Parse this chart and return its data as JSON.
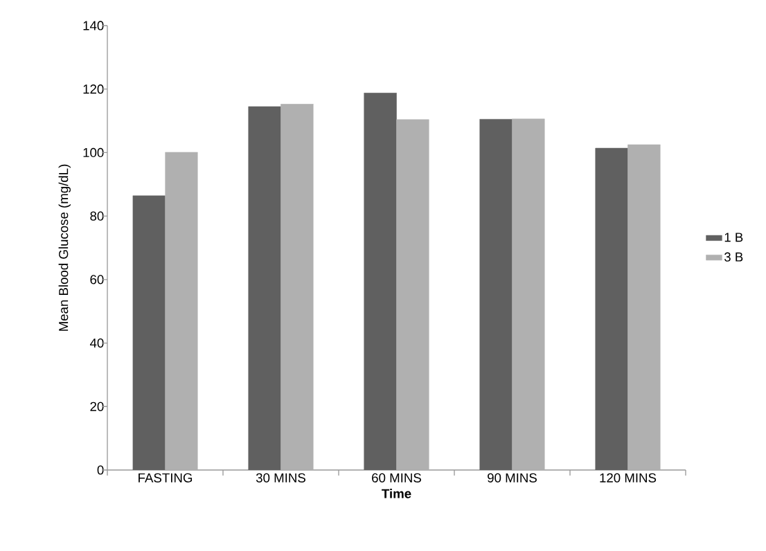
{
  "chart_data": {
    "type": "bar",
    "xlabel": "Time",
    "ylabel": "Mean Blood Glucose (mg/dL)",
    "categories": [
      "FASTING",
      "30 MINS",
      "60 MINS",
      "90 MINS",
      "120 MINS"
    ],
    "series": [
      {
        "name": "1 B",
        "color": "#606060",
        "values": [
          86.4,
          114.5,
          118.8,
          110.5,
          101.4
        ]
      },
      {
        "name": "3 B",
        "color": "#b0b0b0",
        "values": [
          100.1,
          115.3,
          110.4,
          110.6,
          102.5
        ]
      }
    ],
    "ylim": [
      0,
      140
    ],
    "yticks": [
      0,
      20,
      40,
      60,
      80,
      100,
      120,
      140
    ],
    "grid": false,
    "legend": "right"
  }
}
